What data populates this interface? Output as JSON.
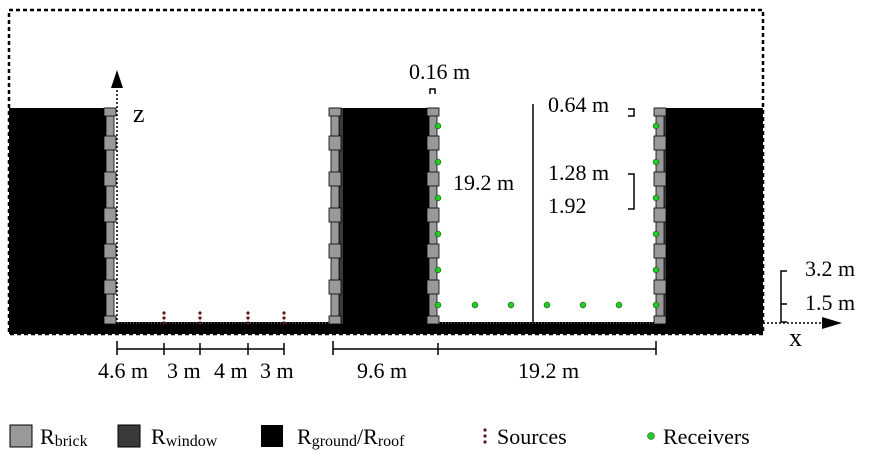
{
  "diagram": {
    "axis_z": "z",
    "axis_x": "x",
    "dimensions": {
      "wall_thickness": "0.16 m",
      "height_total": "19.2 m",
      "receiver_top_spacing": "0.64 m",
      "receiver_spacing_a": "1.28 m",
      "receiver_spacing_b": "1.92",
      "receiver_height_offset": "3.2 m",
      "source_height": "1.5 m",
      "bottom_spacing_1": "4.6 m",
      "bottom_spacing_2": "3 m",
      "bottom_spacing_3": "4 m",
      "bottom_spacing_4": "3 m",
      "bottom_building_width": "9.6 m",
      "bottom_street_width": "19.2 m"
    },
    "legend": {
      "brick_main": "R",
      "brick_sub": "brick",
      "window_main": "R",
      "window_sub": "window",
      "groundroof_main_a": "R",
      "groundroof_sub_a": "ground",
      "groundroof_slash": "/R",
      "groundroof_sub_b": "roof",
      "sources": "Sources",
      "receivers": "Receivers"
    },
    "colors": {
      "brick": "#999999",
      "window": "#3a3a3a",
      "ground_roof": "#000000",
      "source": "#5a1a1a",
      "receiver": "#22cc22"
    }
  }
}
